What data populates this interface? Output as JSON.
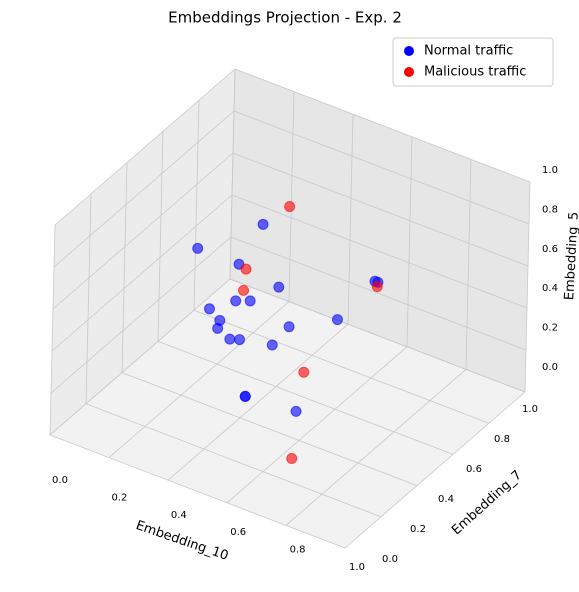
{
  "chart_data": {
    "type": "scatter3d",
    "title": "Embeddings Projection - Exp. 2",
    "xlabel": "Embedding_10",
    "ylabel": "Embedding_7",
    "zlabel": "Embedding_5",
    "xlim": [
      0,
      1
    ],
    "ylim": [
      0,
      1
    ],
    "zlim": [
      0,
      1
    ],
    "xticks": [
      {
        "value": 0,
        "label": "0.0"
      },
      0.2,
      0.4,
      0.6,
      0.8,
      {
        "value": 1,
        "label": "1.0"
      }
    ],
    "yticks": [
      {
        "value": 0,
        "label": "0.0"
      },
      0.2,
      0.4,
      0.6,
      0.8,
      {
        "value": 1,
        "label": "1.0"
      }
    ],
    "zticks": [
      {
        "value": 0,
        "label": "0.0"
      },
      0.2,
      0.4,
      0.6,
      0.8,
      {
        "value": 1,
        "label": "1.0"
      }
    ],
    "grid": true,
    "legend": "upper right",
    "series": [
      {
        "name": "Normal traffic",
        "color": "#0000ff",
        "x": [
          0.12,
          0.32,
          0.26,
          0.36,
          0.24,
          0.33,
          0.2,
          0.2,
          0.3,
          0.33,
          0.41,
          0.38,
          0.53,
          0.39,
          0.57,
          0.58,
          0.41,
          0.41,
          0.57
        ],
        "y": [
          0.61,
          0.64,
          0.61,
          0.67,
          0.63,
          0.56,
          0.55,
          0.61,
          0.43,
          0.45,
          0.37,
          0.7,
          0.72,
          0.59,
          0.86,
          0.86,
          0.41,
          0.41,
          0.43
        ],
        "z": [
          0.5,
          0.7,
          0.5,
          0.4,
          0.3,
          0.4,
          0.3,
          0.2,
          0.35,
          0.3,
          0.4,
          0.2,
          0.3,
          0.2,
          0.4,
          0.4,
          0.1,
          0.1,
          0.1
        ]
      },
      {
        "name": "Malicious traffic",
        "color": "#ff0000",
        "x": [
          0.39,
          0.29,
          0.23,
          0.59,
          0.51,
          0.66
        ],
        "y": [
          0.67,
          0.6,
          0.69,
          0.84,
          0.57,
          0.26
        ],
        "z": [
          0.8,
          0.5,
          0.3,
          0.4,
          0.15,
          0.05
        ]
      }
    ]
  }
}
